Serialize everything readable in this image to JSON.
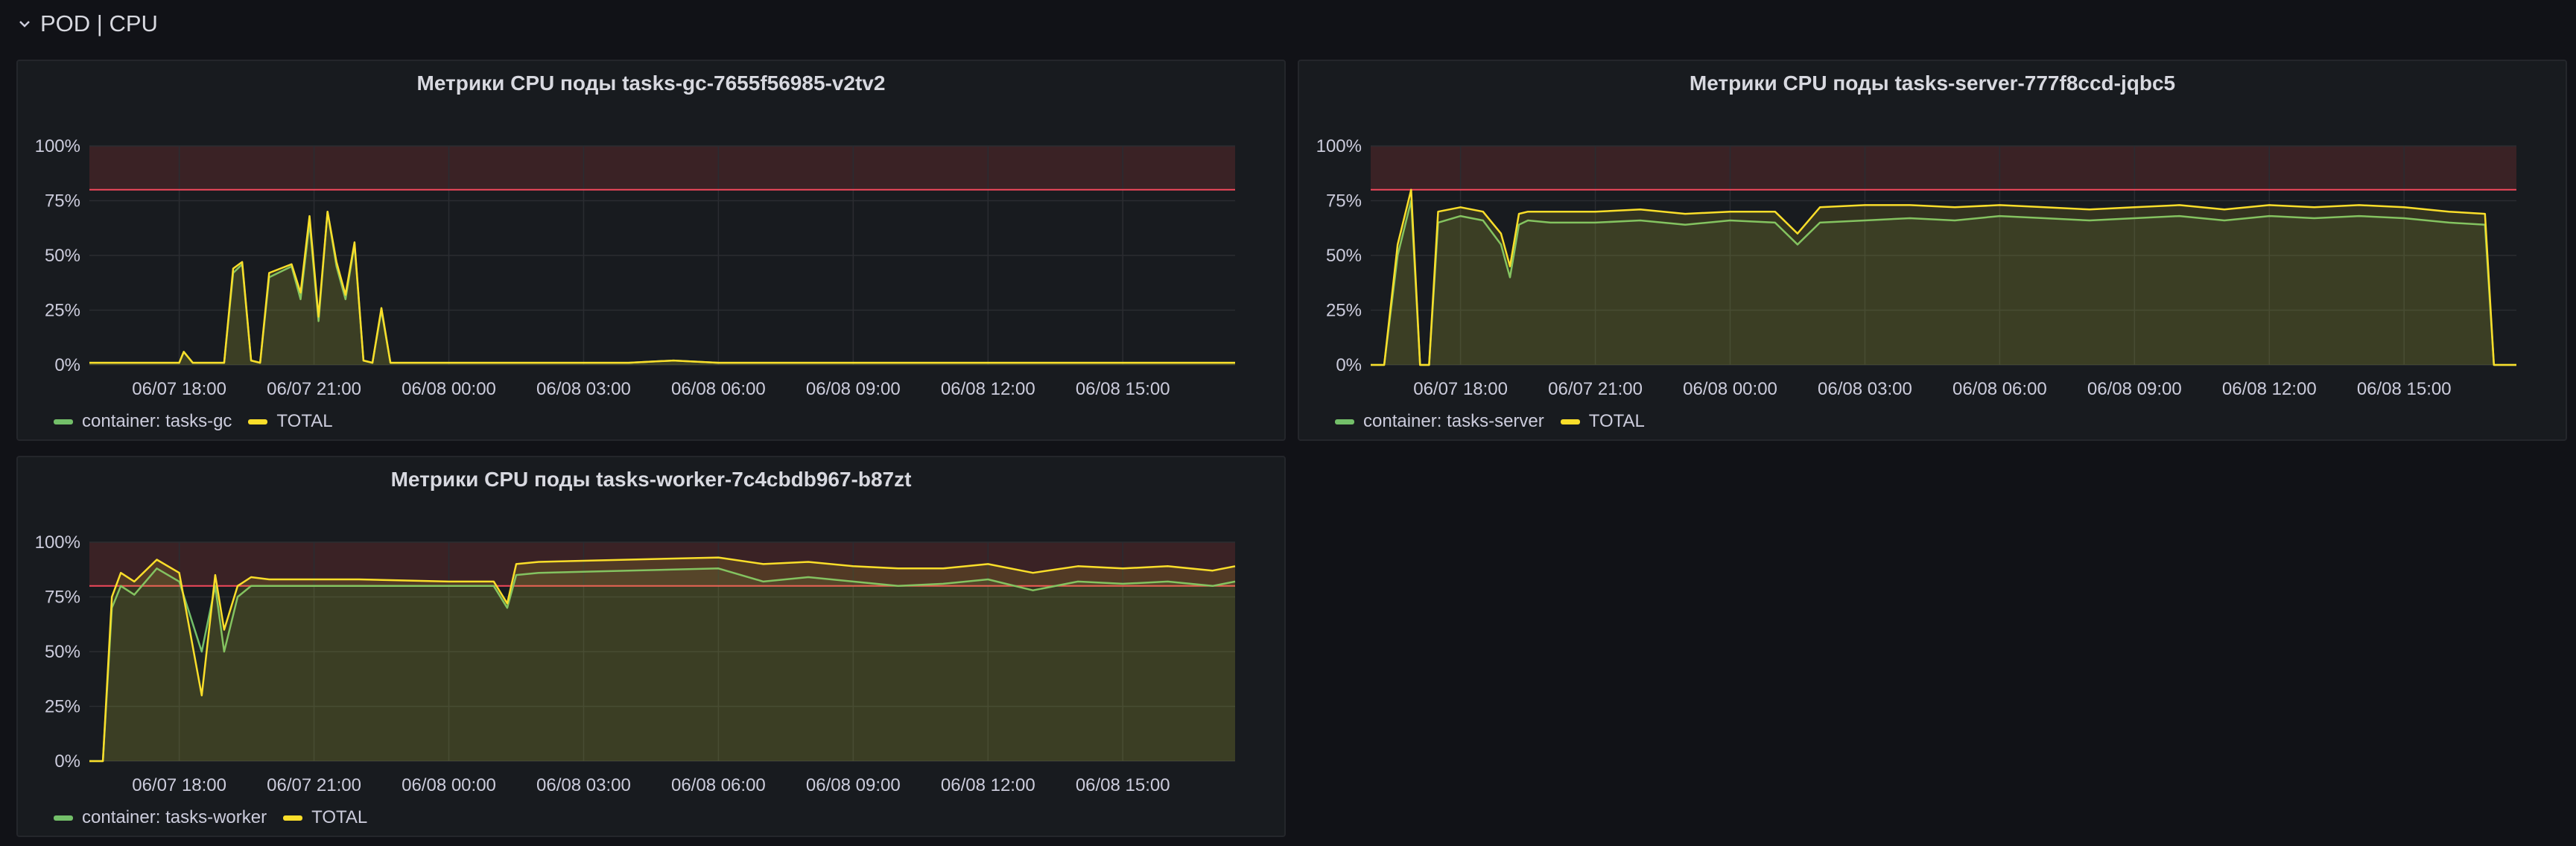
{
  "row": {
    "title": "POD | CPU"
  },
  "colors": {
    "container": "#73bf69",
    "total": "#fade2a",
    "threshold_line": "#f2495c",
    "threshold_fill": "#3a2225",
    "grid": "#2a2c31"
  },
  "panels": [
    {
      "title": "Метрики CPU поды tasks-gc-7655f56985-v2tv2",
      "legend": [
        "container: tasks-gc",
        "TOTAL"
      ],
      "y_ticks": [
        "0%",
        "25%",
        "50%",
        "75%",
        "100%"
      ],
      "x_ticks": [
        "06/07 18:00",
        "06/07 21:00",
        "06/08 00:00",
        "06/08 03:00",
        "06/08 06:00",
        "06/08 09:00",
        "06/08 12:00",
        "06/08 15:00"
      ]
    },
    {
      "title": "Метрики CPU поды tasks-server-777f8ccd-jqbc5",
      "legend": [
        "container: tasks-server",
        "TOTAL"
      ],
      "y_ticks": [
        "0%",
        "25%",
        "50%",
        "75%",
        "100%"
      ],
      "x_ticks": [
        "06/07 18:00",
        "06/07 21:00",
        "06/08 00:00",
        "06/08 03:00",
        "06/08 06:00",
        "06/08 09:00",
        "06/08 12:00",
        "06/08 15:00"
      ]
    },
    {
      "title": "Метрики CPU поды tasks-worker-7c4cbdb967-b87zt",
      "legend": [
        "container: tasks-worker",
        "TOTAL"
      ],
      "y_ticks": [
        "0%",
        "25%",
        "50%",
        "75%",
        "100%"
      ],
      "x_ticks": [
        "06/07 18:00",
        "06/07 21:00",
        "06/08 00:00",
        "06/08 03:00",
        "06/08 06:00",
        "06/08 09:00",
        "06/08 12:00",
        "06/08 15:00"
      ]
    }
  ],
  "chart_data": [
    {
      "type": "area",
      "title": "Метрики CPU поды tasks-gc-7655f56985-v2tv2",
      "x_unit": "hours since 06/07 16:00",
      "xlim": [
        0,
        25.5
      ],
      "ylim": [
        0,
        100
      ],
      "threshold": 80,
      "series": [
        {
          "name": "container: tasks-gc",
          "x": [
            0,
            2,
            2.1,
            2.3,
            3,
            3.2,
            3.4,
            3.6,
            3.8,
            4,
            4.5,
            4.7,
            4.9,
            5.1,
            5.3,
            5.5,
            5.7,
            5.9,
            6.1,
            6.3,
            6.5,
            6.7,
            6.9,
            7.1,
            7.5,
            8,
            10,
            12,
            13,
            14,
            16,
            18,
            20,
            22,
            24,
            25.5
          ],
          "y": [
            1,
            1,
            6,
            1,
            1,
            42,
            46,
            2,
            1,
            40,
            45,
            30,
            65,
            20,
            70,
            45,
            30,
            55,
            2,
            1,
            25,
            1,
            1,
            1,
            1,
            1,
            1,
            1,
            2,
            1,
            1,
            1,
            1,
            1,
            1,
            1
          ]
        },
        {
          "name": "TOTAL",
          "x": [
            0,
            2,
            2.1,
            2.3,
            3,
            3.2,
            3.4,
            3.6,
            3.8,
            4,
            4.5,
            4.7,
            4.9,
            5.1,
            5.3,
            5.5,
            5.7,
            5.9,
            6.1,
            6.3,
            6.5,
            6.7,
            6.9,
            7.1,
            7.5,
            8,
            10,
            12,
            13,
            14,
            16,
            18,
            20,
            22,
            24,
            25.5
          ],
          "y": [
            1,
            1,
            6,
            1,
            1,
            44,
            47,
            2,
            1,
            42,
            46,
            33,
            68,
            22,
            70,
            47,
            32,
            56,
            2,
            1,
            26,
            1,
            1,
            1,
            1,
            1,
            1,
            1,
            2,
            1,
            1,
            1,
            1,
            1,
            1,
            1
          ]
        }
      ]
    },
    {
      "type": "area",
      "title": "Метрики CPU поды tasks-server-777f8ccd-jqbc5",
      "x_unit": "hours since 06/07 16:00",
      "xlim": [
        0,
        25.5
      ],
      "ylim": [
        0,
        100
      ],
      "threshold": 80,
      "series": [
        {
          "name": "container: tasks-server",
          "x": [
            0,
            0.3,
            0.6,
            0.9,
            1.1,
            1.3,
            1.5,
            2,
            2.5,
            2.9,
            3.1,
            3.3,
            3.5,
            4,
            5,
            6,
            7,
            8,
            9,
            9.5,
            10,
            11,
            12,
            13,
            14,
            15,
            16,
            17,
            18,
            19,
            20,
            21,
            22,
            23,
            24,
            24.8,
            25,
            25.5
          ],
          "y": [
            0,
            0,
            50,
            75,
            0,
            0,
            65,
            68,
            66,
            55,
            40,
            64,
            66,
            65,
            65,
            66,
            64,
            66,
            65,
            55,
            65,
            66,
            67,
            66,
            68,
            67,
            66,
            67,
            68,
            66,
            68,
            67,
            68,
            67,
            65,
            64,
            0,
            0
          ]
        },
        {
          "name": "TOTAL",
          "x": [
            0,
            0.3,
            0.6,
            0.9,
            1.1,
            1.3,
            1.5,
            2,
            2.5,
            2.9,
            3.1,
            3.3,
            3.5,
            4,
            5,
            6,
            7,
            8,
            9,
            9.5,
            10,
            11,
            12,
            13,
            14,
            15,
            16,
            17,
            18,
            19,
            20,
            21,
            22,
            23,
            24,
            24.8,
            25,
            25.5
          ],
          "y": [
            0,
            0,
            55,
            80,
            0,
            0,
            70,
            72,
            70,
            60,
            45,
            69,
            70,
            70,
            70,
            71,
            69,
            70,
            70,
            60,
            72,
            73,
            73,
            72,
            73,
            72,
            71,
            72,
            73,
            71,
            73,
            72,
            73,
            72,
            70,
            69,
            0,
            0
          ]
        }
      ]
    },
    {
      "type": "area",
      "title": "Метрики CPU поды tasks-worker-7c4cbdb967-b87zt",
      "x_unit": "hours since 06/07 16:00",
      "xlim": [
        0,
        25.5
      ],
      "ylim": [
        0,
        100
      ],
      "threshold": 80,
      "series": [
        {
          "name": "container: tasks-worker",
          "x": [
            0,
            0.3,
            0.5,
            0.7,
            1,
            1.5,
            2,
            2.5,
            2.8,
            3,
            3.3,
            3.6,
            4,
            6,
            8,
            9,
            9.3,
            9.5,
            10,
            12,
            14,
            15,
            16,
            17,
            18,
            19,
            20,
            21,
            22,
            23,
            24,
            25,
            25.5
          ],
          "y": [
            0,
            0,
            70,
            80,
            76,
            88,
            82,
            50,
            80,
            50,
            75,
            80,
            80,
            80,
            80,
            80,
            70,
            85,
            86,
            87,
            88,
            82,
            84,
            82,
            80,
            81,
            83,
            78,
            82,
            81,
            82,
            80,
            82
          ]
        },
        {
          "name": "TOTAL",
          "x": [
            0,
            0.3,
            0.5,
            0.7,
            1,
            1.5,
            2,
            2.5,
            2.8,
            3,
            3.3,
            3.6,
            4,
            6,
            8,
            9,
            9.3,
            9.5,
            10,
            12,
            14,
            15,
            16,
            17,
            18,
            19,
            20,
            21,
            22,
            23,
            24,
            25,
            25.5
          ],
          "y": [
            0,
            0,
            75,
            86,
            82,
            92,
            86,
            30,
            85,
            60,
            80,
            84,
            83,
            83,
            82,
            82,
            72,
            90,
            91,
            92,
            93,
            90,
            91,
            89,
            88,
            88,
            90,
            86,
            89,
            88,
            89,
            87,
            89
          ]
        }
      ]
    }
  ]
}
